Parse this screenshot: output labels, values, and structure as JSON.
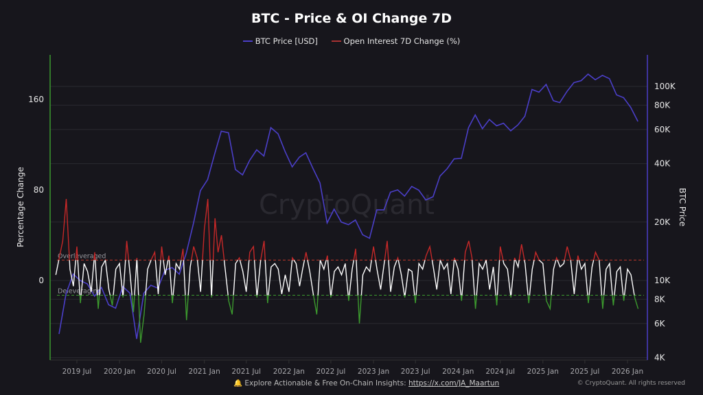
{
  "chart_data": {
    "type": "line",
    "title": "BTC - Price & OI Change 7D",
    "legend": {
      "placement": "top-center",
      "entries": [
        "BTC Price [USD]",
        "Open Interest 7D Change (%)"
      ]
    },
    "y_left": {
      "label": "Percentage Change",
      "ticks": [
        0,
        80,
        160
      ],
      "range": [
        -70,
        200
      ]
    },
    "y_right": {
      "label": "BTC Price",
      "scale": "log",
      "ticks": [
        "4K",
        "6K",
        "8K",
        "10K",
        "20K",
        "40K",
        "60K",
        "80K",
        "100K"
      ],
      "tick_values": [
        4000,
        6000,
        8000,
        10000,
        20000,
        40000,
        60000,
        80000,
        100000
      ],
      "range": [
        3900,
        170000
      ]
    },
    "x_ticks": [
      "2019 Jul",
      "2020 Jan",
      "2020 Jul",
      "2021 Jan",
      "2021 Jul",
      "2022 Jan",
      "2022 Jul",
      "2023 Jan",
      "2023 Jul",
      "2024 Jan",
      "2024 Jul",
      "2025 Jan",
      "2025 Jul",
      "2026 Jan"
    ],
    "x_tick_dates": [
      "2019-07-01",
      "2020-01-01",
      "2020-07-01",
      "2021-01-01",
      "2021-07-01",
      "2022-01-01",
      "2022-07-01",
      "2023-01-01",
      "2023-07-01",
      "2024-01-01",
      "2024-07-01",
      "2025-01-01",
      "2025-07-01",
      "2026-01-01"
    ],
    "grid": true,
    "thresholds": [
      {
        "label": "Overleveraged",
        "value": 18,
        "color": "#c0392b"
      },
      {
        "label": "Deleveraging",
        "value": -13,
        "color": "#3c9a2e"
      }
    ],
    "colors": {
      "price": "#4b3fc9",
      "oi_normal": "#ffffff",
      "oi_high": "#c62828",
      "oi_low": "#3c9a2e",
      "left_axis": "#3c9a2e",
      "right_axis": "#4b3fc9"
    },
    "series": [
      {
        "name": "BTC Price [USD]",
        "axis": "right",
        "start": "2019-04",
        "interval": "month",
        "values": [
          5300,
          8500,
          10800,
          10000,
          9600,
          8300,
          9200,
          7500,
          7200,
          9300,
          8600,
          5000,
          8600,
          9450,
          9130,
          11300,
          11650,
          10780,
          13800,
          19700,
          29000,
          33100,
          45000,
          58800,
          57700,
          37300,
          35000,
          41500,
          47100,
          43800,
          61300,
          57000,
          46300,
          38500,
          43200,
          45500,
          37700,
          31800,
          19800,
          23300,
          20000,
          19400,
          20500,
          17200,
          16500,
          23100,
          23100,
          28500,
          29300,
          27200,
          30500,
          29200,
          26000,
          27000,
          34500,
          37700,
          42300,
          42600,
          61200,
          71300,
          60600,
          67500,
          62700,
          64600,
          59000,
          63300,
          70200,
          96400,
          93400,
          102400,
          84400,
          82500,
          94200,
          104600,
          107100,
          115700,
          108200,
          114000,
          109600,
          90400,
          87500,
          78000,
          66000
        ]
      },
      {
        "name": "Open Interest 7D Change (%)",
        "axis": "left",
        "start": "2019-04",
        "interval": "half-month",
        "values": [
          5,
          20,
          35,
          72,
          10,
          -5,
          30,
          -20,
          15,
          8,
          -10,
          25,
          -25,
          12,
          18,
          -8,
          -22,
          10,
          15,
          -15,
          35,
          5,
          -28,
          20,
          -55,
          -30,
          10,
          18,
          25,
          -12,
          30,
          5,
          22,
          -20,
          15,
          10,
          28,
          -35,
          12,
          30,
          20,
          -10,
          45,
          72,
          -15,
          55,
          25,
          40,
          10,
          -18,
          -30,
          15,
          20,
          8,
          -10,
          25,
          30,
          -15,
          18,
          35,
          -20,
          12,
          15,
          10,
          -12,
          5,
          -10,
          20,
          15,
          -5,
          10,
          25,
          8,
          -12,
          -30,
          18,
          10,
          22,
          -15,
          8,
          12,
          5,
          15,
          -18,
          10,
          28,
          -38,
          5,
          12,
          8,
          30,
          10,
          -8,
          15,
          35,
          -10,
          12,
          20,
          5,
          -15,
          10,
          8,
          -20,
          15,
          10,
          22,
          30,
          12,
          -8,
          18,
          10,
          15,
          -12,
          20,
          10,
          -18,
          25,
          35,
          20,
          -25,
          15,
          10,
          18,
          -8,
          12,
          -22,
          30,
          15,
          10,
          -15,
          20,
          12,
          32,
          15,
          -20,
          10,
          25,
          18,
          15,
          -18,
          -25,
          10,
          20,
          12,
          15,
          30,
          18,
          -12,
          22,
          10,
          15,
          -20,
          12,
          25,
          18,
          -25,
          10,
          15,
          -22,
          8,
          12,
          -18,
          10,
          5,
          -15,
          -25
        ]
      }
    ]
  },
  "watermark": "CryptoQuant",
  "footer": {
    "text": "Explore Actionable & Free On-Chain Insights:",
    "link": "https://x.com/JA_Maartun",
    "copyright": "© CryptoQuant. All rights reserved",
    "icon": "bell-icon"
  }
}
